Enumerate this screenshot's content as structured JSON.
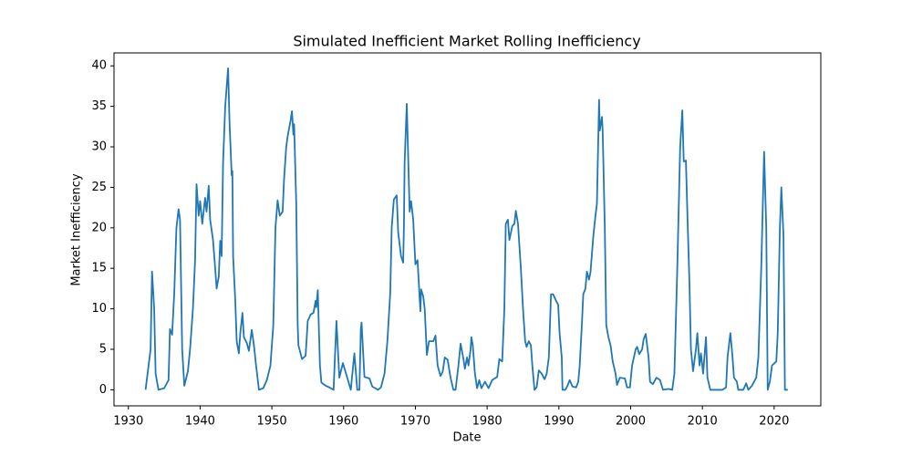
{
  "chart_data": {
    "type": "line",
    "title": "Simulated Inefficient Market Rolling Inefficiency",
    "x_label": "Date",
    "y_label": "Market Inefficiency",
    "xlim": [
      1928,
      2026.5
    ],
    "ylim": [
      -1.98,
      41.6
    ],
    "xticks": [
      1930,
      1940,
      1950,
      1960,
      1970,
      1980,
      1990,
      2000,
      2010,
      2020
    ],
    "yticks": [
      0,
      5,
      10,
      15,
      20,
      25,
      30,
      35,
      40
    ],
    "series": [
      {
        "color": "#1f77b4",
        "x": [
          1932.4,
          1933.1,
          1933.3,
          1933.6,
          1933.8,
          1934.2,
          1935.0,
          1935.6,
          1935.8,
          1936.1,
          1936.4,
          1936.7,
          1937.0,
          1937.2,
          1937.5,
          1937.8,
          1938.3,
          1938.6,
          1939.0,
          1939.3,
          1939.5,
          1939.8,
          1940.0,
          1940.3,
          1940.7,
          1940.9,
          1941.2,
          1941.4,
          1941.8,
          1942.1,
          1942.3,
          1942.6,
          1942.8,
          1943.0,
          1943.2,
          1943.5,
          1943.9,
          1944.1,
          1944.4,
          1944.5,
          1944.6,
          1944.9,
          1945.1,
          1945.4,
          1945.6,
          1945.9,
          1946.1,
          1946.5,
          1946.8,
          1947.2,
          1947.5,
          1947.8,
          1948.2,
          1948.8,
          1949.3,
          1949.8,
          1950.2,
          1950.5,
          1950.8,
          1951.1,
          1951.5,
          1951.7,
          1952.0,
          1952.2,
          1952.6,
          1952.8,
          1953.0,
          1953.1,
          1953.4,
          1953.6,
          1953.7,
          1954.2,
          1954.7,
          1955.0,
          1955.4,
          1955.8,
          1956.1,
          1956.2,
          1956.4,
          1956.7,
          1956.9,
          1957.5,
          1958.0,
          1958.6,
          1959.0,
          1959.4,
          1959.9,
          1960.4,
          1961.0,
          1961.5,
          1961.9,
          1962.2,
          1962.4,
          1962.5,
          1962.9,
          1963.6,
          1964.0,
          1964.8,
          1965.2,
          1965.7,
          1966.1,
          1966.5,
          1966.7,
          1967.0,
          1967.4,
          1967.6,
          1968.0,
          1968.3,
          1968.4,
          1968.5,
          1968.8,
          1969.2,
          1969.4,
          1969.7,
          1970.0,
          1970.3,
          1970.7,
          1970.8,
          1971.1,
          1971.3,
          1971.6,
          1971.9,
          1972.5,
          1972.8,
          1973.1,
          1973.5,
          1973.8,
          1974.1,
          1974.5,
          1974.9,
          1975.3,
          1975.6,
          1976.0,
          1976.3,
          1976.7,
          1976.9,
          1977.2,
          1977.4,
          1977.7,
          1977.8,
          1978.0,
          1978.3,
          1978.6,
          1978.9,
          1979.2,
          1979.7,
          1980.2,
          1980.7,
          1981.4,
          1981.7,
          1982.1,
          1982.4,
          1982.6,
          1982.9,
          1983.1,
          1983.5,
          1983.8,
          1984.0,
          1984.3,
          1984.7,
          1985.0,
          1985.3,
          1985.5,
          1985.8,
          1986.1,
          1986.3,
          1986.6,
          1986.9,
          1987.2,
          1987.6,
          1988.0,
          1988.3,
          1988.6,
          1988.9,
          1989.2,
          1989.6,
          1989.9,
          1990.1,
          1990.4,
          1990.5,
          1990.9,
          1991.2,
          1991.5,
          1991.9,
          1992.4,
          1992.7,
          1992.9,
          1993.2,
          1993.4,
          1993.7,
          1993.9,
          1994.2,
          1994.4,
          1994.8,
          1995.1,
          1995.3,
          1995.6,
          1995.7,
          1996.0,
          1996.1,
          1996.4,
          1996.6,
          1996.9,
          1997.2,
          1997.5,
          1997.9,
          1998.1,
          1998.5,
          1999.2,
          1999.5,
          1999.9,
          2000.2,
          2000.7,
          2000.9,
          2001.2,
          2001.6,
          2001.8,
          2002.1,
          2002.5,
          2002.7,
          2003.1,
          2003.6,
          2004.1,
          2004.5,
          2005.3,
          2005.8,
          2006.1,
          2006.5,
          2006.9,
          2007.2,
          2007.4,
          2007.7,
          2007.9,
          2008.2,
          2008.4,
          2008.7,
          2009.1,
          2009.3,
          2009.6,
          2009.8,
          2010.1,
          2010.5,
          2010.7,
          2011.1,
          2011.9,
          2012.8,
          2013.3,
          2013.5,
          2013.9,
          2014.2,
          2014.4,
          2014.8,
          2015.0,
          2015.7,
          2016.1,
          2016.4,
          2016.9,
          2017.5,
          2017.8,
          2018.2,
          2018.6,
          2018.9,
          2019.1,
          2019.4,
          2019.7,
          2020.3,
          2020.5,
          2020.8,
          2021.0,
          2021.3,
          2021.5,
          2021.9
        ],
        "values": [
          0,
          5,
          14.6,
          10,
          2,
          0,
          0.2,
          1.2,
          7.5,
          6.8,
          12,
          20,
          22.3,
          21,
          5,
          0.5,
          2.3,
          5,
          10,
          16,
          25.4,
          21.5,
          23.3,
          20.5,
          23.7,
          22,
          25.2,
          21,
          18.5,
          15,
          12.5,
          14,
          18.4,
          16.5,
          28,
          35,
          39.7,
          33,
          26.5,
          27,
          16.5,
          11,
          6,
          4.5,
          7,
          9.5,
          6.5,
          5.8,
          4.8,
          7.4,
          5.5,
          3,
          0,
          0.2,
          1.2,
          3,
          8,
          20,
          23.4,
          21.5,
          22,
          26,
          30,
          31.3,
          33.2,
          34.4,
          31.5,
          32.8,
          22.9,
          8,
          5.5,
          3.8,
          4.2,
          8.5,
          9.3,
          9.5,
          11,
          10.2,
          12.3,
          3,
          0.9,
          0.5,
          0.3,
          0,
          8.5,
          1.5,
          3.3,
          1.8,
          0,
          4.5,
          0,
          0,
          7.5,
          8.3,
          1.6,
          1.4,
          0.4,
          0,
          0.3,
          2,
          6,
          12,
          20,
          23.5,
          24,
          19.5,
          16.5,
          15.7,
          20,
          28,
          35.3,
          22,
          23.3,
          21,
          15.5,
          16,
          9.7,
          12.4,
          11.5,
          10,
          4.3,
          6,
          6,
          6.7,
          3,
          1.7,
          2.2,
          4,
          3.7,
          1.5,
          0,
          0,
          3,
          5.7,
          3.8,
          2.6,
          4,
          3,
          5,
          6.5,
          5.5,
          2,
          0.2,
          1.2,
          0.2,
          1,
          0.2,
          1.2,
          1.6,
          3.8,
          3.5,
          10,
          20.5,
          21,
          18.5,
          20.2,
          20.5,
          22.1,
          20.5,
          15,
          10,
          6,
          5.3,
          6,
          5.5,
          3,
          0,
          0.3,
          2.4,
          2,
          1.3,
          2,
          4,
          11.8,
          11.8,
          11,
          10.5,
          7,
          4,
          0,
          0,
          0.5,
          1.2,
          0.4,
          0.3,
          1,
          3,
          8,
          11.8,
          12.5,
          14.6,
          13.6,
          14.5,
          19,
          21.5,
          23,
          35.8,
          32,
          33.7,
          32,
          20,
          8,
          6.5,
          5.5,
          3.5,
          2,
          0.6,
          1.5,
          1.4,
          0.3,
          0.3,
          3,
          5,
          5.3,
          4.4,
          5,
          6.2,
          6.9,
          4,
          1,
          0.7,
          1.5,
          1.2,
          0,
          0.1,
          0,
          2,
          15,
          30,
          34.5,
          28.2,
          28.3,
          22,
          13,
          5,
          2.3,
          5,
          7,
          3,
          4.5,
          2,
          6.5,
          1.5,
          0,
          0,
          0,
          0.3,
          4,
          7,
          4,
          1.5,
          1,
          0,
          0,
          0.8,
          0,
          0.5,
          1.5,
          4,
          15,
          29.4,
          20,
          0,
          1,
          3,
          3.5,
          7,
          20,
          25,
          19,
          0,
          0
        ]
      }
    ]
  }
}
